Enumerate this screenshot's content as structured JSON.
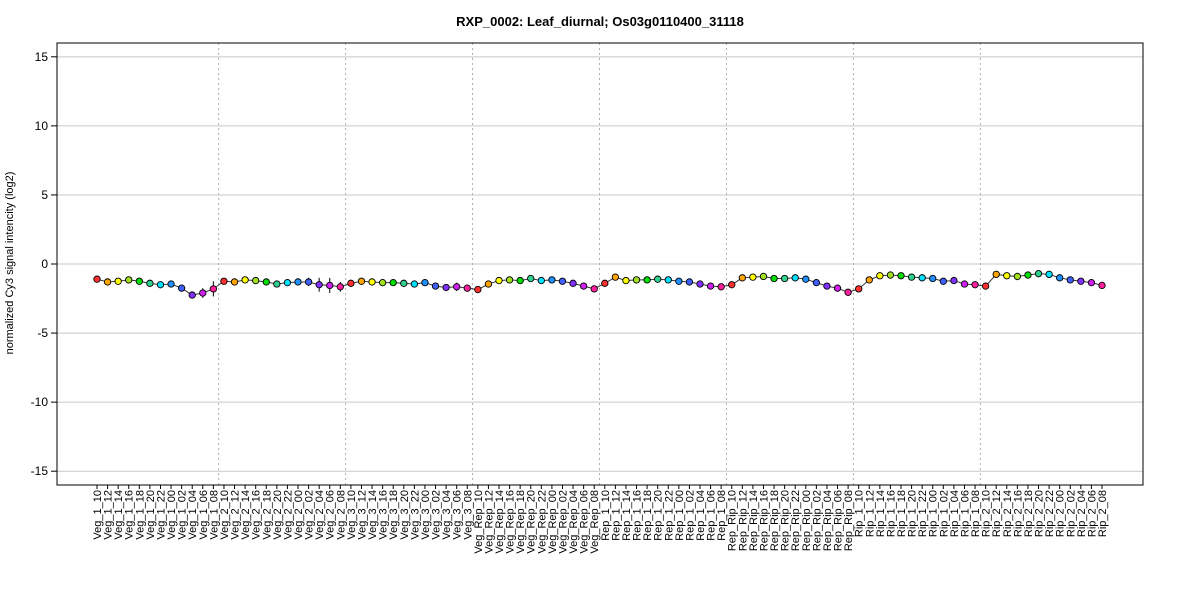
{
  "chart_data": {
    "type": "line",
    "title": "RXP_0002: Leaf_diurnal; Os03g0110400_31118",
    "ylabel": "normalized Cy3 signal intencity (log2)",
    "xlabel": "",
    "ylim": [
      -16,
      16
    ],
    "yticks": [
      -15,
      -10,
      -5,
      0,
      5,
      10,
      15
    ],
    "grid": true,
    "group_separators_after_index": [
      11,
      23,
      35,
      47,
      59,
      71,
      83
    ],
    "categories": [
      "Veg_1_10",
      "Veg_1_12",
      "Veg_1_14",
      "Veg_1_16",
      "Veg_1_18",
      "Veg_1_20",
      "Veg_1_22",
      "Veg_1_00",
      "Veg_1_02",
      "Veg_1_04",
      "Veg_1_06",
      "Veg_1_08",
      "Veg_2_10",
      "Veg_2_12",
      "Veg_2_14",
      "Veg_2_16",
      "Veg_2_18",
      "Veg_2_20",
      "Veg_2_22",
      "Veg_2_00",
      "Veg_2_02",
      "Veg_2_04",
      "Veg_2_06",
      "Veg_2_08",
      "Veg_3_10",
      "Veg_3_12",
      "Veg_3_14",
      "Veg_3_16",
      "Veg_3_18",
      "Veg_3_20",
      "Veg_3_22",
      "Veg_3_00",
      "Veg_3_02",
      "Veg_3_04",
      "Veg_3_06",
      "Veg_3_08",
      "Veg_Rep_10",
      "Veg_Rep_12",
      "Veg_Rep_14",
      "Veg_Rep_16",
      "Veg_Rep_18",
      "Veg_Rep_20",
      "Veg_Rep_22",
      "Veg_Rep_00",
      "Veg_Rep_02",
      "Veg_Rep_04",
      "Veg_Rep_06",
      "Veg_Rep_08",
      "Rep_1_10",
      "Rep_1_12",
      "Rep_1_14",
      "Rep_1_16",
      "Rep_1_18",
      "Rep_1_20",
      "Rep_1_22",
      "Rep_1_00",
      "Rep_1_02",
      "Rep_1_04",
      "Rep_1_06",
      "Rep_1_08",
      "Rep_Rip_10",
      "Rep_Rip_12",
      "Rep_Rip_14",
      "Rep_Rip_16",
      "Rep_Rip_18",
      "Rep_Rip_20",
      "Rep_Rip_22",
      "Rep_Rip_00",
      "Rep_Rip_02",
      "Rep_Rip_04",
      "Rep_Rip_06",
      "Rep_Rip_08",
      "Rip_1_10",
      "Rip_1_12",
      "Rip_1_14",
      "Rip_1_16",
      "Rip_1_18",
      "Rip_1_20",
      "Rip_1_22",
      "Rip_1_00",
      "Rip_1_02",
      "Rip_1_04",
      "Rip_1_06",
      "Rip_1_08",
      "Rip_2_10",
      "Rip_2_12",
      "Rip_2_14",
      "Rip_2_16",
      "Rip_2_18",
      "Rip_2_20",
      "Rip_2_22",
      "Rip_2_00",
      "Rip_2_02",
      "Rip_2_04",
      "Rip_2_06",
      "Rip_2_08"
    ],
    "values": [
      -1.1,
      -1.3,
      -1.25,
      -1.15,
      -1.25,
      -1.4,
      -1.5,
      -1.45,
      -1.75,
      -2.25,
      -2.1,
      -1.8,
      -1.25,
      -1.3,
      -1.15,
      -1.2,
      -1.3,
      -1.45,
      -1.35,
      -1.3,
      -1.3,
      -1.5,
      -1.55,
      -1.65,
      -1.4,
      -1.25,
      -1.3,
      -1.35,
      -1.35,
      -1.4,
      -1.45,
      -1.35,
      -1.6,
      -1.7,
      -1.65,
      -1.75,
      -1.85,
      -1.45,
      -1.2,
      -1.15,
      -1.2,
      -1.05,
      -1.2,
      -1.15,
      -1.25,
      -1.4,
      -1.6,
      -1.8,
      -1.4,
      -0.95,
      -1.2,
      -1.15,
      -1.15,
      -1.1,
      -1.15,
      -1.25,
      -1.3,
      -1.45,
      -1.6,
      -1.65,
      -1.5,
      -1.0,
      -0.95,
      -0.9,
      -1.05,
      -1.05,
      -1.0,
      -1.1,
      -1.35,
      -1.6,
      -1.75,
      -2.05,
      -1.8,
      -1.15,
      -0.85,
      -0.8,
      -0.85,
      -0.95,
      -1.0,
      -1.05,
      -1.25,
      -1.2,
      -1.45,
      -1.5,
      -1.6,
      -0.75,
      -0.85,
      -0.9,
      -0.8,
      -0.7,
      -0.75,
      -1.0,
      -1.15,
      -1.25,
      -1.35,
      -1.55
    ],
    "errors": [
      0.1,
      0.1,
      0.1,
      0.1,
      0.1,
      0.1,
      0.1,
      0.1,
      0.15,
      0.15,
      0.35,
      0.55,
      0.2,
      0.2,
      0.15,
      0.1,
      0.1,
      0.1,
      0.1,
      0.1,
      0.3,
      0.5,
      0.55,
      0.35,
      0.1,
      0.1,
      0.1,
      0.1,
      0.1,
      0.1,
      0.1,
      0.1,
      0.1,
      0.1,
      0.3,
      0.1,
      0.1,
      0.1,
      0.1,
      0.1,
      0.1,
      0.1,
      0.1,
      0.1,
      0.1,
      0.1,
      0.1,
      0.1,
      0.1,
      0.1,
      0.15,
      0.1,
      0.1,
      0.1,
      0.1,
      0.1,
      0.1,
      0.1,
      0.1,
      0.1,
      0.1,
      0.1,
      0.1,
      0.1,
      0.1,
      0.1,
      0.1,
      0.1,
      0.1,
      0.1,
      0.1,
      0.1,
      0.1,
      0.1,
      0.2,
      0.15,
      0.1,
      0.1,
      0.1,
      0.1,
      0.1,
      0.1,
      0.1,
      0.1,
      0.1,
      0.1,
      0.1,
      0.1,
      0.25,
      0.1,
      0.1,
      0.1,
      0.1,
      0.1,
      0.1,
      0.1
    ],
    "point_colors": [
      "#ff3030",
      "#ffa500",
      "#ffff00",
      "#a0e020",
      "#00dd00",
      "#30d090",
      "#00e0ff",
      "#2090ff",
      "#4060ff",
      "#8030ff",
      "#d020f0",
      "#ff20a0"
    ]
  }
}
